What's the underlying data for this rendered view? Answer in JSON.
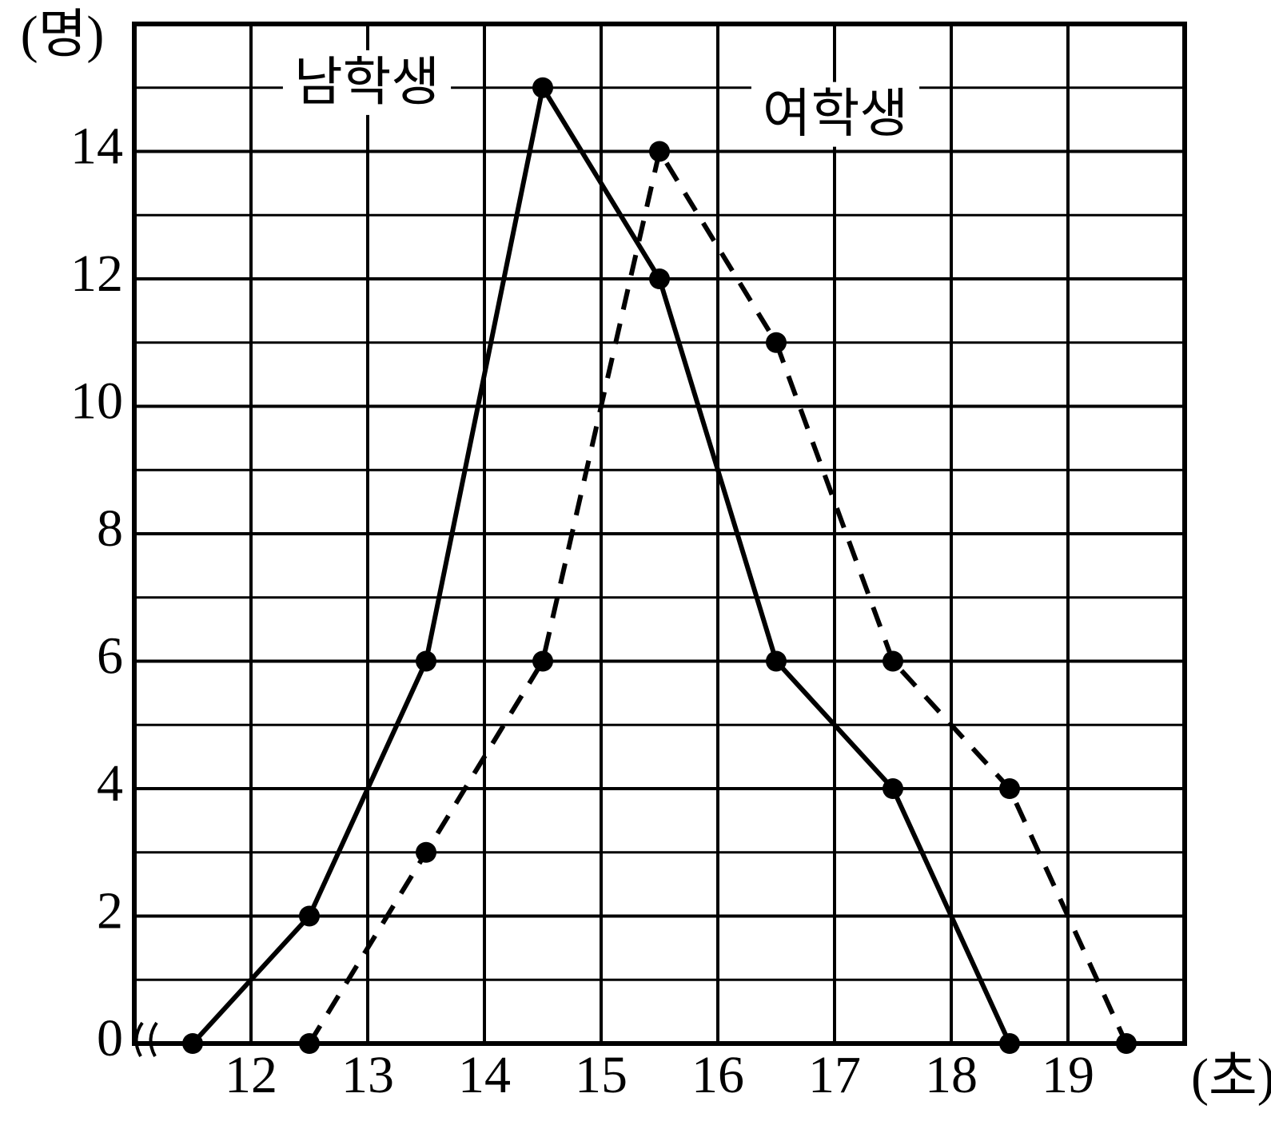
{
  "chart_data": {
    "type": "line",
    "y_label": "(명)",
    "x_label": "(초)",
    "xlim": [
      11,
      20
    ],
    "xticks": [
      12,
      13,
      14,
      15,
      16,
      17,
      18,
      19
    ],
    "ylim": [
      0,
      16
    ],
    "yticks": [
      0,
      2,
      4,
      6,
      8,
      10,
      12,
      14
    ],
    "y_minor_ticks": [
      1,
      3,
      5,
      7,
      9,
      11,
      13,
      15
    ],
    "grid": true,
    "series": [
      {
        "name": "남학생",
        "color": "#000000",
        "dashed": false,
        "x": [
          11.5,
          12.5,
          13.5,
          14.5,
          15.5,
          16.5,
          17.5,
          18.5
        ],
        "values": [
          0,
          2,
          6,
          15,
          12,
          6,
          4,
          0
        ]
      },
      {
        "name": "여학생",
        "color": "#000000",
        "dashed": true,
        "x": [
          12.5,
          13.5,
          14.5,
          15.5,
          16.5,
          17.5,
          18.5,
          19.5
        ],
        "values": [
          0,
          3,
          6,
          14,
          11,
          6,
          4,
          0
        ]
      }
    ]
  }
}
